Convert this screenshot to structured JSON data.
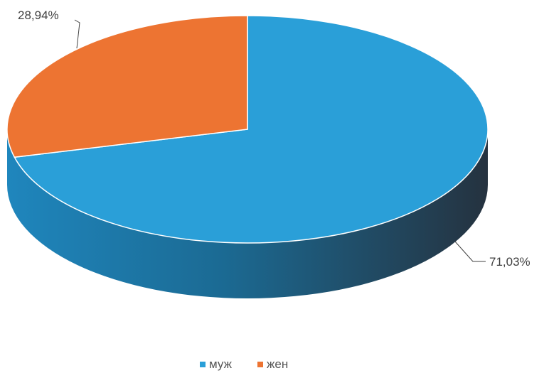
{
  "chart_data": {
    "type": "pie",
    "style": "3d",
    "categories": [
      "муж",
      "жен"
    ],
    "values": [
      71.03,
      28.94
    ],
    "labels": [
      "71,03%",
      "28,94%"
    ],
    "colors": [
      "#2a9fd8",
      "#ed7432"
    ],
    "side_colors": [
      "#1c6f9e",
      "#2c3e50"
    ],
    "legend_position": "bottom",
    "title": ""
  }
}
